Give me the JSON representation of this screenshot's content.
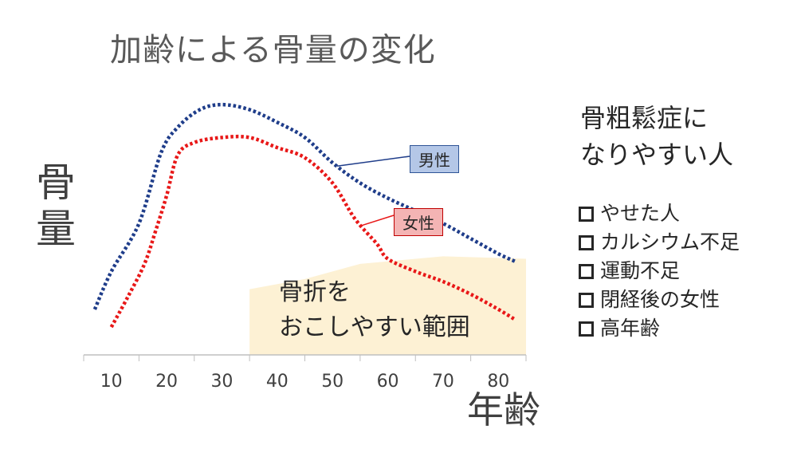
{
  "chart_data": {
    "type": "line",
    "title": "加齢による骨量の変化",
    "xlabel": "年齢",
    "ylabel": "骨量",
    "x_ticks": [
      10,
      20,
      30,
      40,
      50,
      60,
      70,
      80
    ],
    "xlim": [
      5,
      85
    ],
    "ylim": [
      0,
      100
    ],
    "grid": false,
    "series": [
      {
        "name": "男性",
        "color": "#1f3d8a",
        "style": "dotted",
        "points": [
          [
            7,
            18
          ],
          [
            10,
            33
          ],
          [
            15,
            52
          ],
          [
            19,
            80
          ],
          [
            22,
            90
          ],
          [
            26,
            97
          ],
          [
            30,
            99
          ],
          [
            35,
            97
          ],
          [
            40,
            92
          ],
          [
            45,
            86
          ],
          [
            50,
            76
          ],
          [
            55,
            68
          ],
          [
            60,
            62
          ],
          [
            65,
            57
          ],
          [
            70,
            52
          ],
          [
            75,
            46
          ],
          [
            80,
            40
          ],
          [
            83,
            37
          ]
        ]
      },
      {
        "name": "女性",
        "color": "#e81818",
        "style": "dotted",
        "points": [
          [
            10,
            11
          ],
          [
            13,
            23
          ],
          [
            16,
            36
          ],
          [
            18,
            49
          ],
          [
            20,
            63
          ],
          [
            22,
            79
          ],
          [
            25,
            84
          ],
          [
            30,
            86
          ],
          [
            35,
            86
          ],
          [
            40,
            82
          ],
          [
            45,
            78
          ],
          [
            50,
            68
          ],
          [
            54,
            54
          ],
          [
            58,
            44
          ],
          [
            60,
            38
          ],
          [
            65,
            33
          ],
          [
            70,
            29
          ],
          [
            75,
            24
          ],
          [
            80,
            18
          ],
          [
            83,
            14
          ]
        ]
      }
    ],
    "legend": [
      {
        "label": "男性",
        "color": "#b4c7e7",
        "border": "#2f5597"
      },
      {
        "label": "女性",
        "color": "#f4b4b4",
        "border": "#c00000"
      }
    ],
    "zone": {
      "color": "#fdf1d4",
      "label_lines": [
        "骨折を",
        "おこしやすい範囲"
      ],
      "x_from": 35,
      "x_to": 85,
      "top_curve": [
        [
          35,
          26
        ],
        [
          45,
          30
        ],
        [
          55,
          36
        ],
        [
          60,
          37
        ],
        [
          70,
          39
        ],
        [
          85,
          38
        ]
      ]
    }
  },
  "risk_panel": {
    "heading_lines": [
      "骨粗鬆症に",
      "なりやすい人"
    ],
    "items": [
      "やせた人",
      "カルシウム不足",
      "運動不足",
      "閉経後の女性",
      "高年齢"
    ]
  }
}
